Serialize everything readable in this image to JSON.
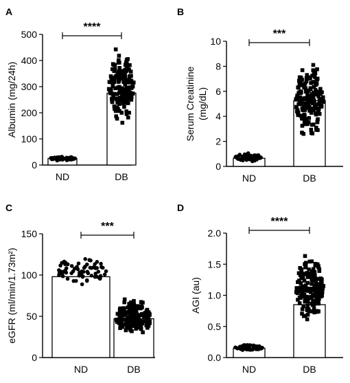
{
  "chart_data": [
    {
      "panel": "A",
      "type": "bar",
      "categories": [
        "ND",
        "DB"
      ],
      "bar_means": [
        25,
        275
      ],
      "ylabel": "Albumin (mg/24h)",
      "ylim": [
        0,
        500
      ],
      "yticks": [
        0,
        100,
        200,
        300,
        400,
        500
      ],
      "significance": "****",
      "series": [
        {
          "name": "ND",
          "points_range": [
            15,
            35
          ]
        },
        {
          "name": "DB",
          "points_range": [
            145,
            455
          ]
        }
      ]
    },
    {
      "panel": "B",
      "type": "bar",
      "categories": [
        "ND",
        "DB"
      ],
      "bar_means": [
        0.65,
        5.25
      ],
      "ylabel_lines": [
        "Serum Creatinine",
        "(mg/dL)"
      ],
      "ylim": [
        0,
        10
      ],
      "yticks": [
        0,
        2,
        4,
        6,
        8,
        10
      ],
      "significance": "***",
      "series": [
        {
          "name": "ND",
          "points_range": [
            0.35,
            1.1
          ]
        },
        {
          "name": "DB",
          "points_range": [
            1.5,
            8.9
          ]
        }
      ]
    },
    {
      "panel": "C",
      "type": "bar",
      "categories": [
        "ND",
        "DB"
      ],
      "bar_means": [
        98,
        47
      ],
      "ylabel": "eGFR (ml/min/1.73m²)",
      "ylim": [
        0,
        150
      ],
      "yticks": [
        0,
        50,
        100,
        150
      ],
      "significance": "***",
      "series": [
        {
          "name": "ND",
          "points_range": [
            85,
            125
          ]
        },
        {
          "name": "DB",
          "points_range": [
            20,
            75
          ]
        }
      ]
    },
    {
      "panel": "D",
      "type": "bar",
      "categories": [
        "ND",
        "DB"
      ],
      "bar_means": [
        0.15,
        0.85
      ],
      "ylabel": "AGI (au)",
      "ylim": [
        0,
        2.0
      ],
      "yticks": [
        "0.0",
        "0.5",
        "1.0",
        "1.5",
        "2.0"
      ],
      "significance": "****",
      "series": [
        {
          "name": "ND",
          "points_range": [
            0.1,
            0.22
          ]
        },
        {
          "name": "DB",
          "points_range": [
            0.5,
            1.75
          ]
        }
      ]
    }
  ],
  "colors": {
    "axis": "#000000",
    "bar_fill": "#ffffff",
    "nd_marker": "#000000",
    "db_marker": "#000000"
  },
  "icons": {
    "nd_marker": "filled-circle",
    "db_marker": "filled-square"
  }
}
